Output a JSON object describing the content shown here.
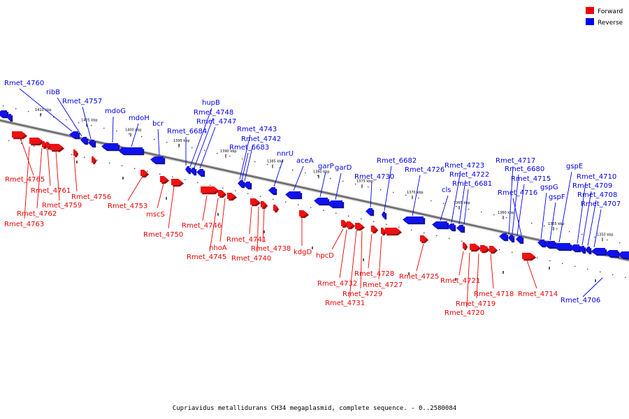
{
  "colors": {
    "forward": "#ee0000",
    "reverse": "#0000ee",
    "backbone": "#888888"
  },
  "legend": {
    "forward": "Forward",
    "reverse": "Reverse"
  },
  "caption": "Cupriavidus metallidurans CH34 megaplasmid, complete sequence. - 0..2580084",
  "ticks": [
    "1410 kbp",
    "1405 kbp",
    "1400 kbp",
    "1395 kbp",
    "1390 kbp",
    "1385 kbp",
    "1380 kbp",
    "1375 kbp",
    "1370 kbp",
    "1365 kbp",
    "1360 kbp",
    "1355 kbp",
    "1350 kbp"
  ],
  "forward_genes": [
    "Rmet_4765",
    "Rmet_4763",
    "Rmet_4762",
    "Rmet_4761",
    "Rmet_4759",
    "Rmet_4756",
    "Rmet_4753",
    "mscS",
    "Rmet_4750",
    "Rmet_4746",
    "Rmet_4745",
    "nhoA",
    "Rmet_4741",
    "Rmet_4740",
    "Rmet_4738",
    "kdgD",
    "hpcD",
    "Rmet_4732",
    "Rmet_4731",
    "Rmet_4729",
    "Rmet_4728",
    "Rmet_4727",
    "Rmet_4725",
    "Rmet_4721",
    "Rmet_4720",
    "Rmet_4719",
    "Rmet_4718",
    "Rmet_4714"
  ],
  "reverse_genes": [
    "Rmet_4760",
    "ribB",
    "Rmet_4757",
    "mdoG",
    "mdoH",
    "bcr",
    "Rmet_6684",
    "hupB",
    "Rmet_4748",
    "Rmet_4747",
    "Rmet_4743",
    "Rmet_4742",
    "Rmet_6683",
    "nnrU",
    "aceA",
    "garP",
    "garD",
    "Rmet_4730",
    "Rmet_6682",
    "Rmet_4726",
    "cls",
    "Rmet_4723",
    "Rmet_4722",
    "Rmet_6681",
    "Rmet_4717",
    "Rmet_6680",
    "Rmet_4715",
    "Rmet_4716",
    "gspG",
    "gspF",
    "gspE",
    "Rmet_4710",
    "Rmet_4709",
    "Rmet_4708",
    "Rmet_4707",
    "Rmet_4706"
  ]
}
